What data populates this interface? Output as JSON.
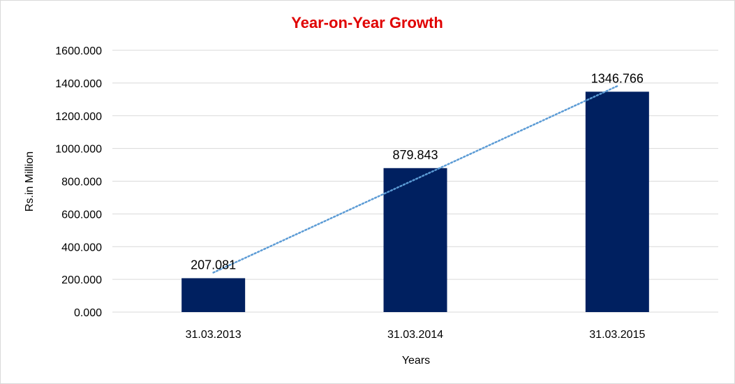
{
  "chart_data": {
    "type": "bar",
    "title": "Year-on-Year Growth",
    "categories": [
      "31.03.2013",
      "31.03.2014",
      "31.03.2015"
    ],
    "values": [
      207.081,
      879.843,
      1346.766
    ],
    "data_labels": [
      "207.081",
      "879.843",
      "1346.766"
    ],
    "xlabel": "Years",
    "ylabel": "Rs.in Million",
    "ylim": [
      0,
      1600
    ],
    "yticks": [
      0,
      200,
      400,
      600,
      800,
      1000,
      1200,
      1400,
      1600
    ],
    "ytick_labels": [
      "0.000",
      "200.000",
      "400.000",
      "600.000",
      "800.000",
      "1000.000",
      "1200.000",
      "1400.000",
      "1600.000"
    ],
    "grid": true,
    "legend": "none",
    "trendline": "linear",
    "colors": {
      "bar": "#002060",
      "title": "#e00000",
      "trendline": "#5b9bd5",
      "grid": "#d9d9d9"
    }
  }
}
